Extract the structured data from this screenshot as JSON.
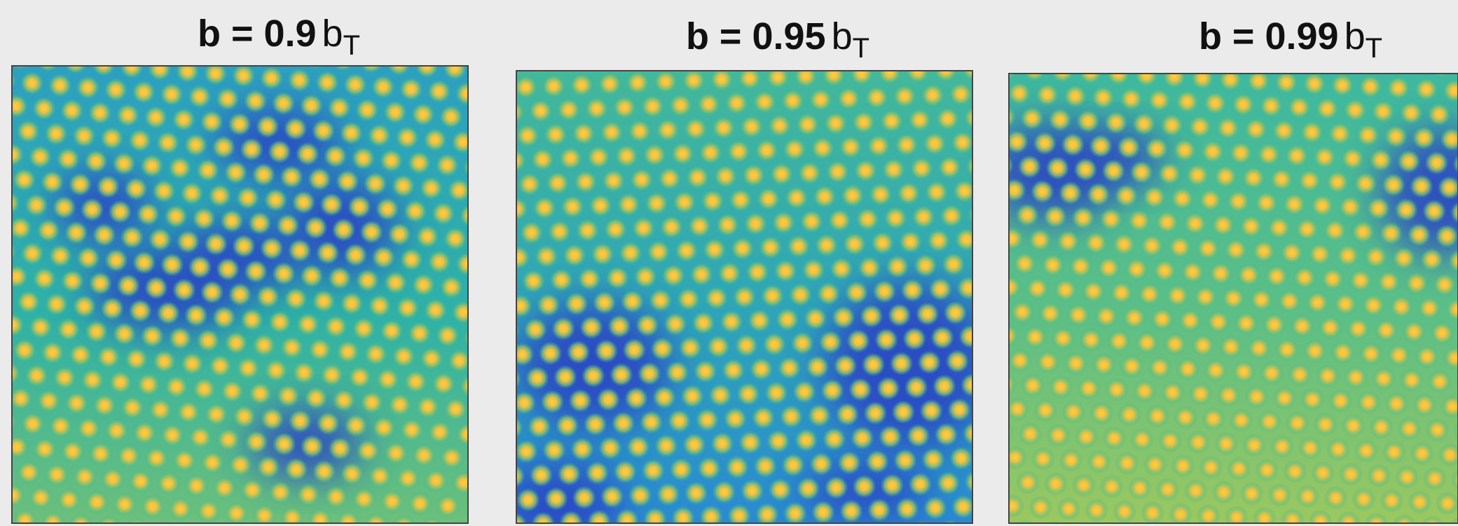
{
  "panels": [
    {
      "label": "b = 0.9",
      "unit": "b",
      "subscript": "T"
    },
    {
      "label": "b = 0.95",
      "unit": "b",
      "subscript": "T"
    },
    {
      "label": "b = 0.99",
      "unit": "b",
      "subscript": "T"
    }
  ]
}
